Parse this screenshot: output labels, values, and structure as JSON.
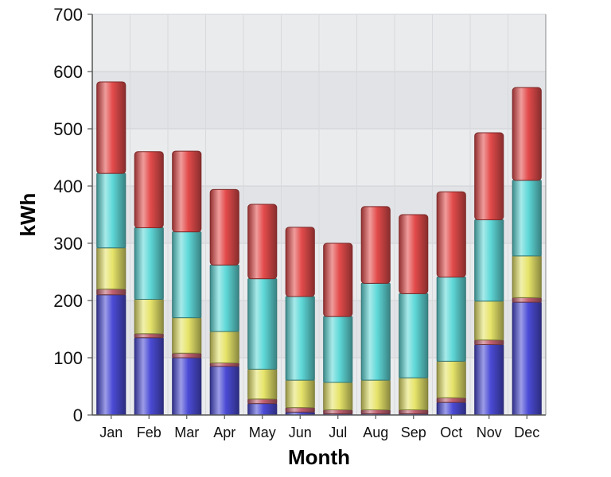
{
  "chart_data": {
    "type": "bar",
    "stacked": true,
    "title": "",
    "xlabel": "Month",
    "ylabel": "kWh",
    "ylim": [
      0,
      700
    ],
    "yticks": [
      0,
      100,
      200,
      300,
      400,
      500,
      600,
      700
    ],
    "grid": true,
    "legend": "none",
    "categories": [
      "Jan",
      "Feb",
      "Mar",
      "Apr",
      "May",
      "Jun",
      "Jul",
      "Aug",
      "Sep",
      "Oct",
      "Nov",
      "Dec"
    ],
    "series": [
      {
        "color": "#4b4bd6",
        "values": [
          210,
          135,
          100,
          85,
          20,
          5,
          2,
          2,
          2,
          22,
          123,
          197
        ]
      },
      {
        "color": "#c06070",
        "values": [
          10,
          7,
          8,
          6,
          8,
          8,
          7,
          7,
          7,
          8,
          8,
          8
        ]
      },
      {
        "color": "#e6e46a",
        "values": [
          72,
          60,
          62,
          55,
          52,
          48,
          48,
          52,
          56,
          64,
          68,
          73
        ]
      },
      {
        "color": "#5fd8d8",
        "values": [
          130,
          125,
          150,
          116,
          158,
          146,
          115,
          169,
          147,
          147,
          142,
          132
        ]
      },
      {
        "color": "#e34b4b",
        "values": [
          160,
          133,
          141,
          132,
          130,
          121,
          128,
          134,
          138,
          149,
          152,
          162
        ]
      }
    ]
  }
}
